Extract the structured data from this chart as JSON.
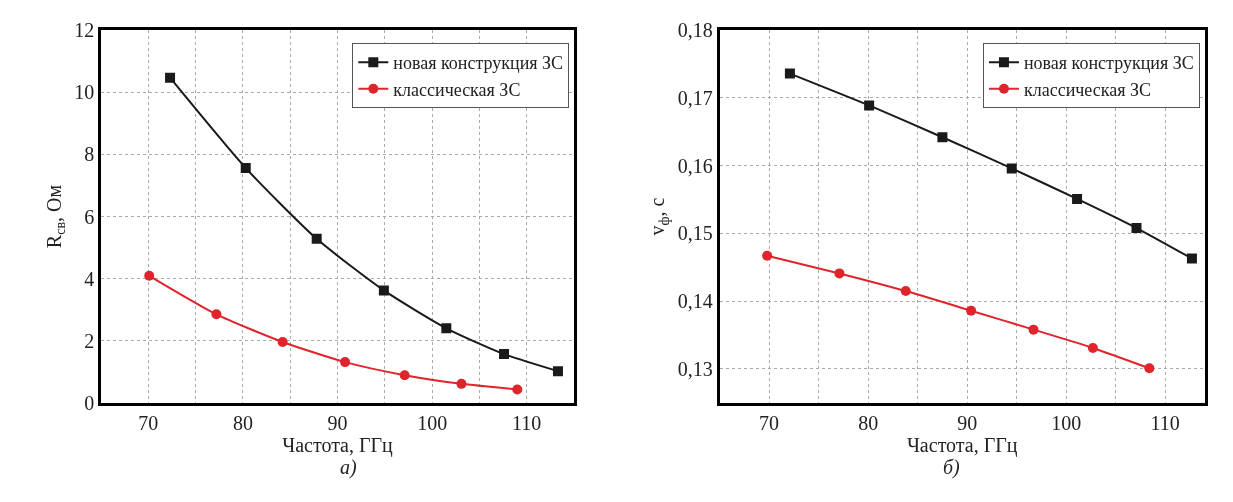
{
  "chart_data": [
    {
      "type": "line",
      "xlabel": "Частота, ГГц",
      "ylabel": "R$_{св}$, Ом",
      "annotations": [
        "а)"
      ],
      "xlim": [
        65,
        115
      ],
      "ylim": [
        0,
        12
      ],
      "xticks": [
        70,
        {
          "value": 75,
          "label": null
        },
        80,
        {
          "value": 85,
          "label": null
        },
        90,
        {
          "value": 95,
          "label": null
        },
        100,
        {
          "value": 105,
          "label": null
        },
        110
      ],
      "yticks": [
        0,
        2,
        4,
        6,
        8,
        10,
        12
      ],
      "grid": true,
      "legend": "top right",
      "series": [
        {
          "name": "новая конструкция ЗС",
          "color": "#1a1a1a",
          "marker": "square",
          "x": [
            72.3,
            80.3,
            87.8,
            94.9,
            101.5,
            107.6,
            113.3
          ],
          "values": [
            10.47,
            7.56,
            5.28,
            3.62,
            2.4,
            1.57,
            1.02
          ]
        },
        {
          "name": "классическая ЗС",
          "color": "#e0242b",
          "marker": "circle",
          "x": [
            70.1,
            77.2,
            84.2,
            90.8,
            97.1,
            103.1,
            109.0
          ],
          "values": [
            4.09,
            2.85,
            1.96,
            1.31,
            0.89,
            0.61,
            0.43
          ]
        }
      ]
    },
    {
      "type": "line",
      "xlabel": "Частота, ГГц",
      "ylabel": "v$_{ф}$, с",
      "annotations": [
        "б)"
      ],
      "xlim": [
        65,
        114
      ],
      "ylim": [
        0.125,
        0.18
      ],
      "xticks": [
        70,
        {
          "value": 75,
          "label": null
        },
        80,
        {
          "value": 85,
          "label": null
        },
        90,
        {
          "value": 95,
          "label": null
        },
        100,
        {
          "value": 105,
          "label": null
        },
        110
      ],
      "yticks": [
        {
          "value": 0.13,
          "label": "0,13"
        },
        {
          "value": 0.14,
          "label": "0,14"
        },
        {
          "value": 0.15,
          "label": "0,15"
        },
        {
          "value": 0.16,
          "label": "0,16"
        },
        {
          "value": 0.17,
          "label": "0,17"
        },
        {
          "value": 0.18,
          "label": "0,18"
        }
      ],
      "grid": true,
      "legend": "top right",
      "series": [
        {
          "name": "новая конструкция ЗС",
          "color": "#1a1a1a",
          "marker": "square",
          "x": [
            72.1,
            80.1,
            87.5,
            94.5,
            101.1,
            107.1,
            112.7
          ],
          "values": [
            0.1736,
            0.1689,
            0.1642,
            0.1596,
            0.1551,
            0.1508,
            0.1463
          ]
        },
        {
          "name": "классическая ЗС",
          "color": "#e0242b",
          "marker": "circle",
          "x": [
            69.8,
            77.1,
            83.8,
            90.4,
            96.7,
            102.7,
            108.4
          ],
          "values": [
            0.1467,
            0.1441,
            0.1415,
            0.1386,
            0.1358,
            0.1331,
            0.1301
          ]
        }
      ]
    }
  ]
}
